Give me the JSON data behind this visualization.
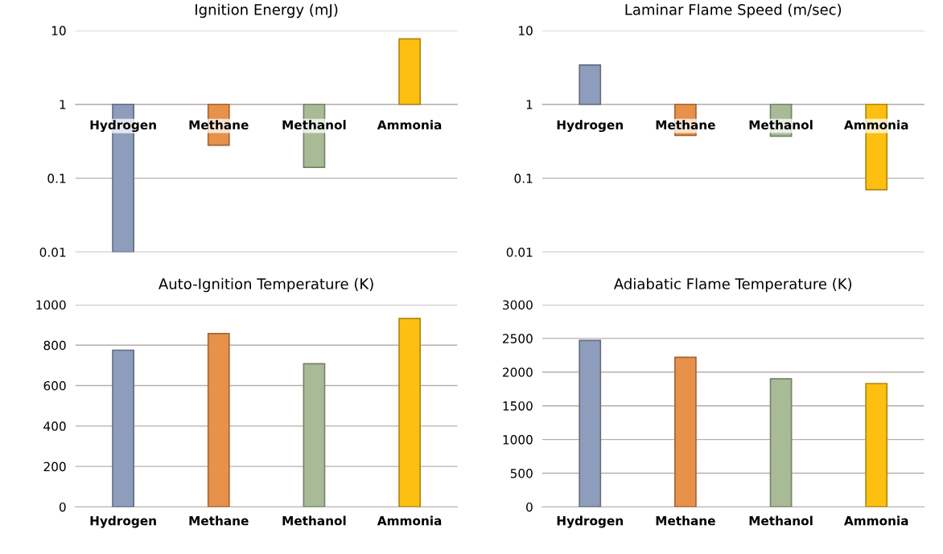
{
  "chart_data": [
    {
      "type": "bar",
      "title": "Ignition Energy (mJ)",
      "categories": [
        "Hydrogen",
        "Methane",
        "Methanol",
        "Ammonia"
      ],
      "base": [
        1,
        1,
        1,
        1
      ],
      "values": [
        -0.99,
        -0.72,
        -0.86,
        6.7
      ],
      "colors": [
        "#8e9dbb",
        "#e8914a",
        "#a9bb96",
        "#fdc010"
      ],
      "log": true,
      "ylim": [
        0.01,
        10
      ],
      "yticks": [
        0.01,
        0.1,
        1,
        10
      ],
      "grid": "y"
    },
    {
      "type": "bar",
      "title": "Laminar Flame Speed (m/sec)",
      "categories": [
        "Hydrogen",
        "Methane",
        "Methanol",
        "Ammonia"
      ],
      "base": [
        1,
        1,
        1,
        1
      ],
      "values": [
        2.4,
        -0.62,
        -0.63,
        -0.93
      ],
      "colors": [
        "#8e9dbb",
        "#e8914a",
        "#a9bb96",
        "#fdc010"
      ],
      "log": true,
      "ylim": [
        0.01,
        10
      ],
      "yticks": [
        0.01,
        0.1,
        1,
        10
      ],
      "grid": "y"
    },
    {
      "type": "bar",
      "title": "Auto-Ignition Temperature (K)",
      "categories": [
        "Hydrogen",
        "Methane",
        "Methanol",
        "Ammonia"
      ],
      "values": [
        775,
        857,
        708,
        932
      ],
      "colors": [
        "#8e9dbb",
        "#e8914a",
        "#a9bb96",
        "#fdc010"
      ],
      "ylim": [
        0,
        1000
      ],
      "yticks": [
        0,
        200,
        400,
        600,
        800,
        1000
      ],
      "grid": "y"
    },
    {
      "type": "bar",
      "title": "Adiabatic Flame Temperature (K)",
      "categories": [
        "Hydrogen",
        "Methane",
        "Methanol",
        "Ammonia"
      ],
      "values": [
        2470,
        2220,
        1900,
        1830
      ],
      "colors": [
        "#8e9dbb",
        "#e8914a",
        "#a9bb96",
        "#fdc010"
      ],
      "ylim": [
        0,
        3000
      ],
      "yticks": [
        0,
        500,
        1000,
        1500,
        2000,
        2500,
        3000
      ],
      "grid": "y"
    }
  ]
}
